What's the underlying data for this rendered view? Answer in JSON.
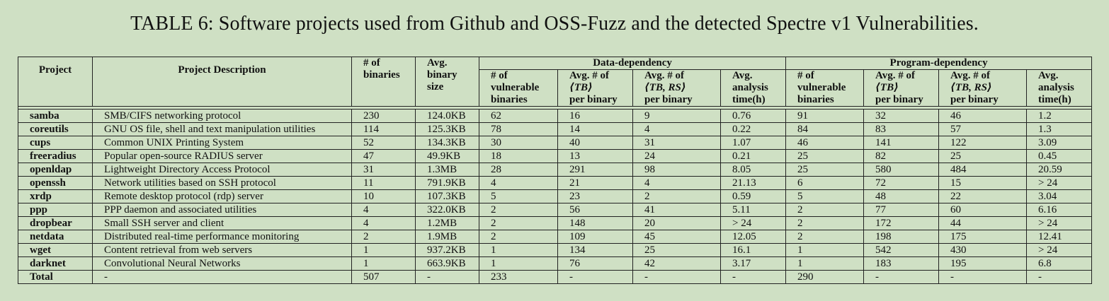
{
  "caption": "TABLE 6: Software projects used from Github and OSS-Fuzz and the detected Spectre v1 Vulnerabilities.",
  "headers": {
    "project": "Project",
    "description": "Project Description",
    "binaries_l1": "# of",
    "binaries_l2": "binaries",
    "size_l1": "Avg.",
    "size_l2": "binary",
    "size_l3": "size",
    "data_dep": "Data-dependency",
    "prog_dep": "Program-dependency",
    "vuln_l1": "# of",
    "vuln_l2": "vulnerable",
    "vuln_l3": "binaries",
    "tb_l1": "Avg. # of",
    "tb_l2": "⟨TB⟩",
    "tb_l3": "per binary",
    "tbrs_l1": "Avg. # of",
    "tbrs_l2": "⟨TB, RS⟩",
    "tbrs_l3": "per binary",
    "time_l1": "Avg.",
    "time_l2": "analysis",
    "time_l3": "time(h)"
  },
  "rows": [
    [
      "samba",
      "SMB/CIFS networking protocol",
      "230",
      "124.0KB",
      "62",
      "16",
      "9",
      "0.76",
      "91",
      "32",
      "46",
      "1.2"
    ],
    [
      "coreutils",
      "GNU OS file, shell and text manipulation utilities",
      "114",
      "125.3KB",
      "78",
      "14",
      "4",
      "0.22",
      "84",
      "83",
      "57",
      "1.3"
    ],
    [
      "cups",
      "Common UNIX Printing System",
      "52",
      "134.3KB",
      "30",
      "40",
      "31",
      "1.07",
      "46",
      "141",
      "122",
      "3.09"
    ],
    [
      "freeradius",
      "Popular open-source RADIUS server",
      "47",
      "49.9KB",
      "18",
      "13",
      "24",
      "0.21",
      "25",
      "82",
      "25",
      "0.45"
    ],
    [
      "openldap",
      "Lightweight Directory Access Protocol",
      "31",
      "1.3MB",
      "28",
      "291",
      "98",
      "8.05",
      "25",
      "580",
      "484",
      "20.59"
    ],
    [
      "openssh",
      "Network utilities based on SSH protocol",
      "11",
      "791.9KB",
      "4",
      "21",
      "4",
      "21.13",
      "6",
      "72",
      "15",
      "> 24"
    ],
    [
      "xrdp",
      "Remote desktop protocol (rdp) server",
      "10",
      "107.3KB",
      "5",
      "23",
      "2",
      "0.59",
      "5",
      "48",
      "22",
      "3.04"
    ],
    [
      "ppp",
      "PPP daemon and associated utilities",
      "4",
      "322.0KB",
      "2",
      "56",
      "41",
      "5.11",
      "2",
      "77",
      "60",
      "6.16"
    ],
    [
      "dropbear",
      "Small SSH server and client",
      "4",
      "1.2MB",
      "2",
      "148",
      "20",
      "> 24",
      "2",
      "172",
      "44",
      "> 24"
    ],
    [
      "netdata",
      "Distributed real-time performance monitoring",
      "2",
      "1.9MB",
      "2",
      "109",
      "45",
      "12.05",
      "2",
      "198",
      "175",
      "12.41"
    ],
    [
      "wget",
      "Content retrieval from web servers",
      "1",
      "937.2KB",
      "1",
      "134",
      "25",
      "16.1",
      "1",
      "542",
      "430",
      "> 24"
    ],
    [
      "darknet",
      "Convolutional Neural Networks",
      "1",
      "663.9KB",
      "1",
      "76",
      "42",
      "3.17",
      "1",
      "183",
      "195",
      "6.8"
    ],
    [
      "Total",
      "-",
      "507",
      "-",
      "233",
      "-",
      "-",
      "-",
      "290",
      "-",
      "-",
      "-"
    ]
  ]
}
